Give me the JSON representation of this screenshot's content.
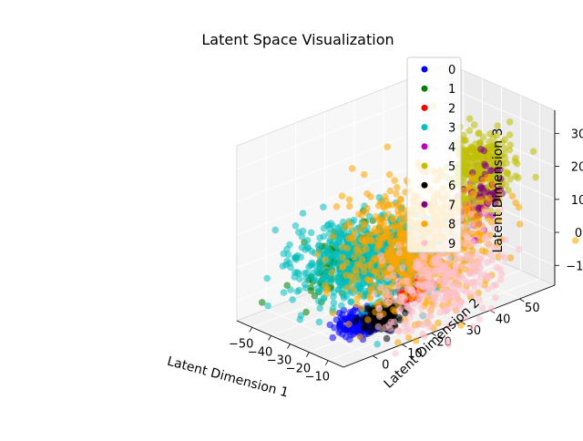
{
  "chart_data": {
    "type": "scatter",
    "projection": "3d",
    "title": "Latent Space Visualization",
    "xlabel": "Latent Dimension 1",
    "ylabel": "Latent Dimension 2",
    "zlabel": "Latent Dimension 3",
    "xlim": [
      -58,
      -2
    ],
    "ylim": [
      -10,
      62
    ],
    "zlim": [
      -16,
      37
    ],
    "xticks": [
      -50,
      -40,
      -30,
      -20,
      -10
    ],
    "yticks": [
      0,
      10,
      20,
      30,
      40,
      50
    ],
    "zticks": [
      -10,
      0,
      10,
      20,
      30
    ],
    "legend_position": "upper right",
    "grid": true,
    "series": [
      {
        "name": "0",
        "color": "#0000ff",
        "center": [
          -22,
          8,
          -14
        ],
        "spread": [
          4,
          3,
          1.5
        ],
        "n": 160
      },
      {
        "name": "1",
        "color": "#008000",
        "center": [
          -52,
          28,
          -8
        ],
        "spread": [
          3,
          8,
          4
        ],
        "n": 220
      },
      {
        "name": "2",
        "color": "#ff0000",
        "center": [
          -15,
          22,
          -6
        ],
        "spread": [
          3,
          3,
          2
        ],
        "n": 90
      },
      {
        "name": "3",
        "color": "#00bfbf",
        "center": [
          -38,
          22,
          -4
        ],
        "spread": [
          10,
          10,
          5
        ],
        "n": 750
      },
      {
        "name": "4",
        "color": "#bf00bf",
        "center": [
          -12,
          42,
          14
        ],
        "spread": [
          2,
          3,
          5
        ],
        "n": 45
      },
      {
        "name": "5",
        "color": "#bfbf00",
        "center": [
          -13,
          43,
          22
        ],
        "spread": [
          4,
          5,
          6
        ],
        "n": 320
      },
      {
        "name": "6",
        "color": "#000000",
        "center": [
          -18,
          14,
          -13
        ],
        "spread": [
          3,
          3,
          1.5
        ],
        "n": 140
      },
      {
        "name": "7",
        "color": "#800080",
        "center": [
          -11,
          45,
          16
        ],
        "spread": [
          2,
          3,
          5
        ],
        "n": 45
      },
      {
        "name": "8",
        "color": "#ffa500",
        "center": [
          -22,
          28,
          2
        ],
        "spread": [
          9,
          10,
          9
        ],
        "n": 750
      },
      {
        "name": "9",
        "color": "#ffc0cb",
        "center": [
          -8,
          28,
          -4
        ],
        "spread": [
          3,
          10,
          7
        ],
        "n": 330
      }
    ]
  }
}
